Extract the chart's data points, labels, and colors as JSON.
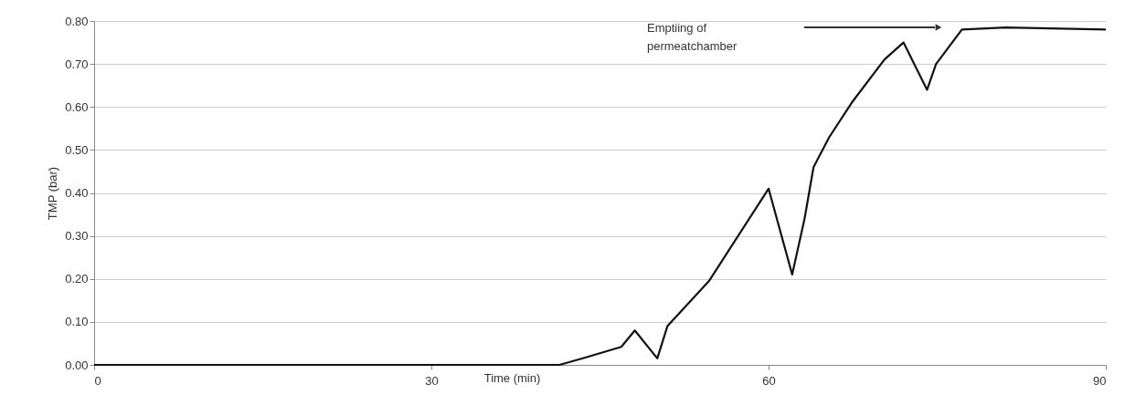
{
  "chart_data": {
    "type": "line",
    "xlabel": "Time (min)",
    "ylabel": "TMP (bar)",
    "xlim": [
      0,
      90
    ],
    "xticks": [
      0,
      30,
      60,
      90
    ],
    "ylim": [
      0,
      0.8
    ],
    "yticks": [
      {
        "value": 0,
        "label": "0.00"
      },
      {
        "value": 0.1,
        "label": "0.10"
      },
      {
        "value": 0.2,
        "label": "0.20"
      },
      {
        "value": 0.3,
        "label": "0.30"
      },
      {
        "value": 0.4,
        "label": "0.40"
      },
      {
        "value": 0.5,
        "label": "0.50"
      },
      {
        "value": 0.6,
        "label": "0.60"
      },
      {
        "value": 0.7,
        "label": "0.70"
      },
      {
        "value": 0.8,
        "label": "0.80"
      }
    ],
    "grid": "y",
    "marker": "none",
    "line_style": "solid",
    "series": [
      {
        "color": "#111111",
        "x": [
          0,
          10,
          20,
          30,
          35,
          41.4,
          43.7,
          46.9,
          48.1,
          50.1,
          51.0,
          54.7,
          60.0,
          62.1,
          63.2,
          64.0,
          65.4,
          67.4,
          70.3,
          72.0,
          74.1,
          74.9,
          77.2,
          81.1,
          90
        ],
        "values": [
          0,
          0,
          0,
          0,
          0,
          0,
          0.017,
          0.042,
          0.08,
          0.015,
          0.09,
          0.195,
          0.41,
          0.21,
          0.34,
          0.46,
          0.53,
          0.61,
          0.71,
          0.75,
          0.64,
          0.7,
          0.78,
          0.785,
          0.78
        ]
      }
    ],
    "annotations": [
      "Emptiing of permeatchamber"
    ]
  }
}
